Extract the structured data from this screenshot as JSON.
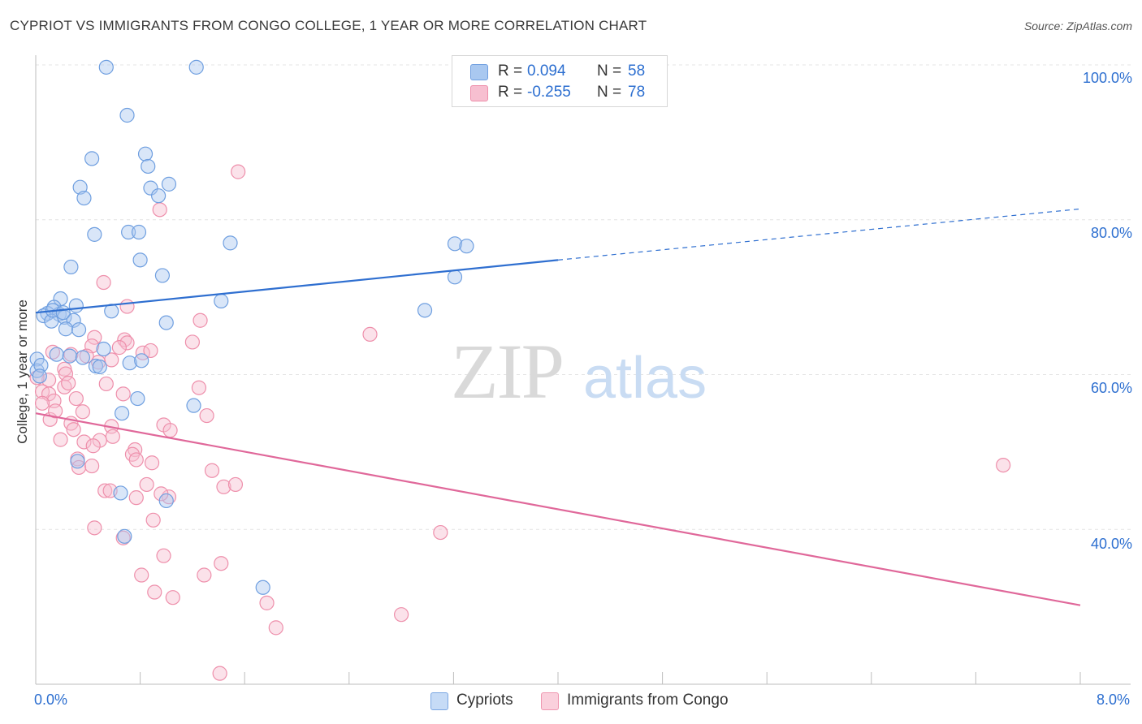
{
  "title": "CYPRIOT VS IMMIGRANTS FROM CONGO COLLEGE, 1 YEAR OR MORE CORRELATION CHART",
  "source": "Source: ZipAtlas.com",
  "watermark": {
    "zip": "ZIP",
    "atlas": "atlas"
  },
  "legend": {
    "rows": [
      {
        "r_label": "R =",
        "r_value": "0.094",
        "n_label": "N =",
        "n_value": "58",
        "color": "#a9c8f0",
        "stroke": "#6f9fe0"
      },
      {
        "r_label": "R =",
        "r_value": "-0.255",
        "n_label": "N =",
        "n_value": "78",
        "color": "#f7bfd0",
        "stroke": "#ee8fab"
      }
    ]
  },
  "bottom_legend": [
    {
      "label": "Cypriots",
      "color": "#c6dbf6",
      "stroke": "#7aa6e2"
    },
    {
      "label": "Immigrants from Congo",
      "color": "#fad0dc",
      "stroke": "#ef97b0"
    }
  ],
  "chart_data": {
    "type": "scatter",
    "title": "CYPRIOT VS IMMIGRANTS FROM CONGO COLLEGE, 1 YEAR OR MORE CORRELATION CHART",
    "xlabel": "",
    "ylabel": "College, 1 year or more",
    "xlim": [
      0,
      8
    ],
    "ylim": [
      20,
      100
    ],
    "x_tick_labels": [
      "0.0%",
      "8.0%"
    ],
    "y_ticks": [
      40,
      60,
      80,
      100
    ],
    "y_tick_labels": [
      "40.0%",
      "60.0%",
      "80.0%",
      "100.0%"
    ],
    "grid": true,
    "legend_position": "top-center",
    "series": [
      {
        "name": "Cypriots",
        "color": "#6f9fe0",
        "fill": "rgba(170,200,240,0.45)",
        "trend": {
          "x": [
            0,
            4.0
          ],
          "y": [
            68.0,
            74.8
          ],
          "dashed_to": [
            8.0,
            81.4
          ],
          "color": "#2f6fd0"
        },
        "points": [
          [
            0.54,
            99.7
          ],
          [
            1.23,
            99.7
          ],
          [
            0.7,
            93.5
          ],
          [
            0.84,
            88.5
          ],
          [
            0.86,
            86.9
          ],
          [
            0.43,
            87.9
          ],
          [
            0.34,
            84.2
          ],
          [
            0.88,
            84.1
          ],
          [
            1.02,
            84.6
          ],
          [
            0.94,
            83.1
          ],
          [
            0.37,
            82.8
          ],
          [
            0.71,
            78.4
          ],
          [
            0.79,
            78.4
          ],
          [
            0.45,
            78.1
          ],
          [
            1.49,
            77.0
          ],
          [
            3.21,
            76.9
          ],
          [
            3.3,
            76.6
          ],
          [
            0.8,
            74.8
          ],
          [
            0.27,
            73.9
          ],
          [
            0.97,
            72.8
          ],
          [
            3.21,
            72.6
          ],
          [
            0.19,
            69.8
          ],
          [
            1.42,
            69.5
          ],
          [
            0.31,
            68.9
          ],
          [
            0.14,
            68.7
          ],
          [
            0.09,
            67.9
          ],
          [
            0.18,
            67.8
          ],
          [
            0.22,
            67.4
          ],
          [
            0.06,
            67.6
          ],
          [
            0.12,
            66.9
          ],
          [
            0.58,
            68.2
          ],
          [
            0.29,
            67.0
          ],
          [
            2.98,
            68.3
          ],
          [
            1.0,
            66.7
          ],
          [
            0.23,
            65.9
          ],
          [
            0.33,
            65.8
          ],
          [
            0.16,
            62.6
          ],
          [
            0.26,
            62.4
          ],
          [
            0.01,
            62.0
          ],
          [
            0.01,
            60.5
          ],
          [
            0.36,
            62.2
          ],
          [
            0.52,
            63.3
          ],
          [
            0.46,
            61.1
          ],
          [
            0.49,
            61.0
          ],
          [
            0.72,
            61.5
          ],
          [
            0.81,
            61.8
          ],
          [
            0.78,
            56.9
          ],
          [
            1.21,
            56.0
          ],
          [
            0.66,
            55.0
          ],
          [
            0.32,
            48.8
          ],
          [
            0.65,
            44.7
          ],
          [
            1.0,
            43.7
          ],
          [
            0.68,
            39.1
          ],
          [
            1.74,
            32.5
          ],
          [
            0.04,
            61.2
          ],
          [
            0.13,
            68.3
          ],
          [
            0.21,
            68.0
          ],
          [
            0.03,
            59.8
          ]
        ]
      },
      {
        "name": "Immigrants from Congo",
        "color": "#ee8fab",
        "fill": "rgba(247,191,208,0.45)",
        "trend": {
          "x": [
            0,
            8.0
          ],
          "y": [
            55.0,
            30.2
          ],
          "color": "#e0689a"
        },
        "points": [
          [
            1.55,
            86.2
          ],
          [
            0.95,
            81.3
          ],
          [
            0.52,
            71.9
          ],
          [
            0.7,
            68.8
          ],
          [
            1.26,
            67.0
          ],
          [
            2.56,
            65.2
          ],
          [
            0.45,
            64.8
          ],
          [
            0.68,
            64.5
          ],
          [
            0.7,
            64.1
          ],
          [
            1.2,
            64.2
          ],
          [
            0.43,
            63.7
          ],
          [
            0.64,
            63.5
          ],
          [
            0.82,
            62.8
          ],
          [
            0.13,
            62.9
          ],
          [
            0.27,
            62.6
          ],
          [
            0.39,
            62.4
          ],
          [
            0.58,
            61.9
          ],
          [
            0.22,
            60.7
          ],
          [
            0.1,
            59.3
          ],
          [
            0.01,
            59.6
          ],
          [
            0.23,
            60.1
          ],
          [
            0.54,
            58.8
          ],
          [
            0.22,
            58.4
          ],
          [
            1.25,
            58.3
          ],
          [
            0.05,
            57.8
          ],
          [
            0.1,
            57.5
          ],
          [
            0.31,
            56.9
          ],
          [
            0.14,
            56.6
          ],
          [
            0.05,
            56.3
          ],
          [
            0.36,
            55.2
          ],
          [
            1.31,
            54.7
          ],
          [
            0.11,
            54.2
          ],
          [
            0.27,
            53.7
          ],
          [
            0.98,
            53.5
          ],
          [
            0.58,
            53.3
          ],
          [
            0.29,
            52.9
          ],
          [
            1.03,
            52.8
          ],
          [
            0.59,
            52.0
          ],
          [
            0.19,
            51.6
          ],
          [
            0.37,
            51.3
          ],
          [
            0.49,
            51.5
          ],
          [
            0.44,
            50.8
          ],
          [
            0.76,
            50.3
          ],
          [
            0.74,
            49.7
          ],
          [
            0.32,
            49.1
          ],
          [
            0.89,
            48.6
          ],
          [
            0.33,
            48.0
          ],
          [
            0.43,
            48.2
          ],
          [
            1.35,
            47.6
          ],
          [
            1.44,
            45.5
          ],
          [
            0.85,
            45.8
          ],
          [
            1.53,
            45.8
          ],
          [
            0.53,
            45.0
          ],
          [
            0.57,
            45.0
          ],
          [
            7.41,
            48.3
          ],
          [
            0.77,
            44.1
          ],
          [
            1.02,
            44.2
          ],
          [
            0.9,
            41.2
          ],
          [
            0.45,
            40.2
          ],
          [
            3.1,
            39.6
          ],
          [
            0.67,
            38.9
          ],
          [
            0.98,
            36.6
          ],
          [
            1.42,
            35.6
          ],
          [
            0.81,
            34.1
          ],
          [
            1.29,
            34.1
          ],
          [
            0.91,
            31.9
          ],
          [
            1.05,
            31.2
          ],
          [
            1.77,
            30.5
          ],
          [
            2.8,
            29.0
          ],
          [
            1.84,
            27.3
          ],
          [
            1.41,
            21.4
          ],
          [
            0.48,
            61.6
          ],
          [
            0.88,
            63.1
          ],
          [
            0.67,
            57.5
          ],
          [
            0.15,
            55.3
          ],
          [
            0.77,
            49.0
          ],
          [
            0.96,
            44.6
          ],
          [
            0.25,
            58.9
          ]
        ]
      }
    ]
  }
}
